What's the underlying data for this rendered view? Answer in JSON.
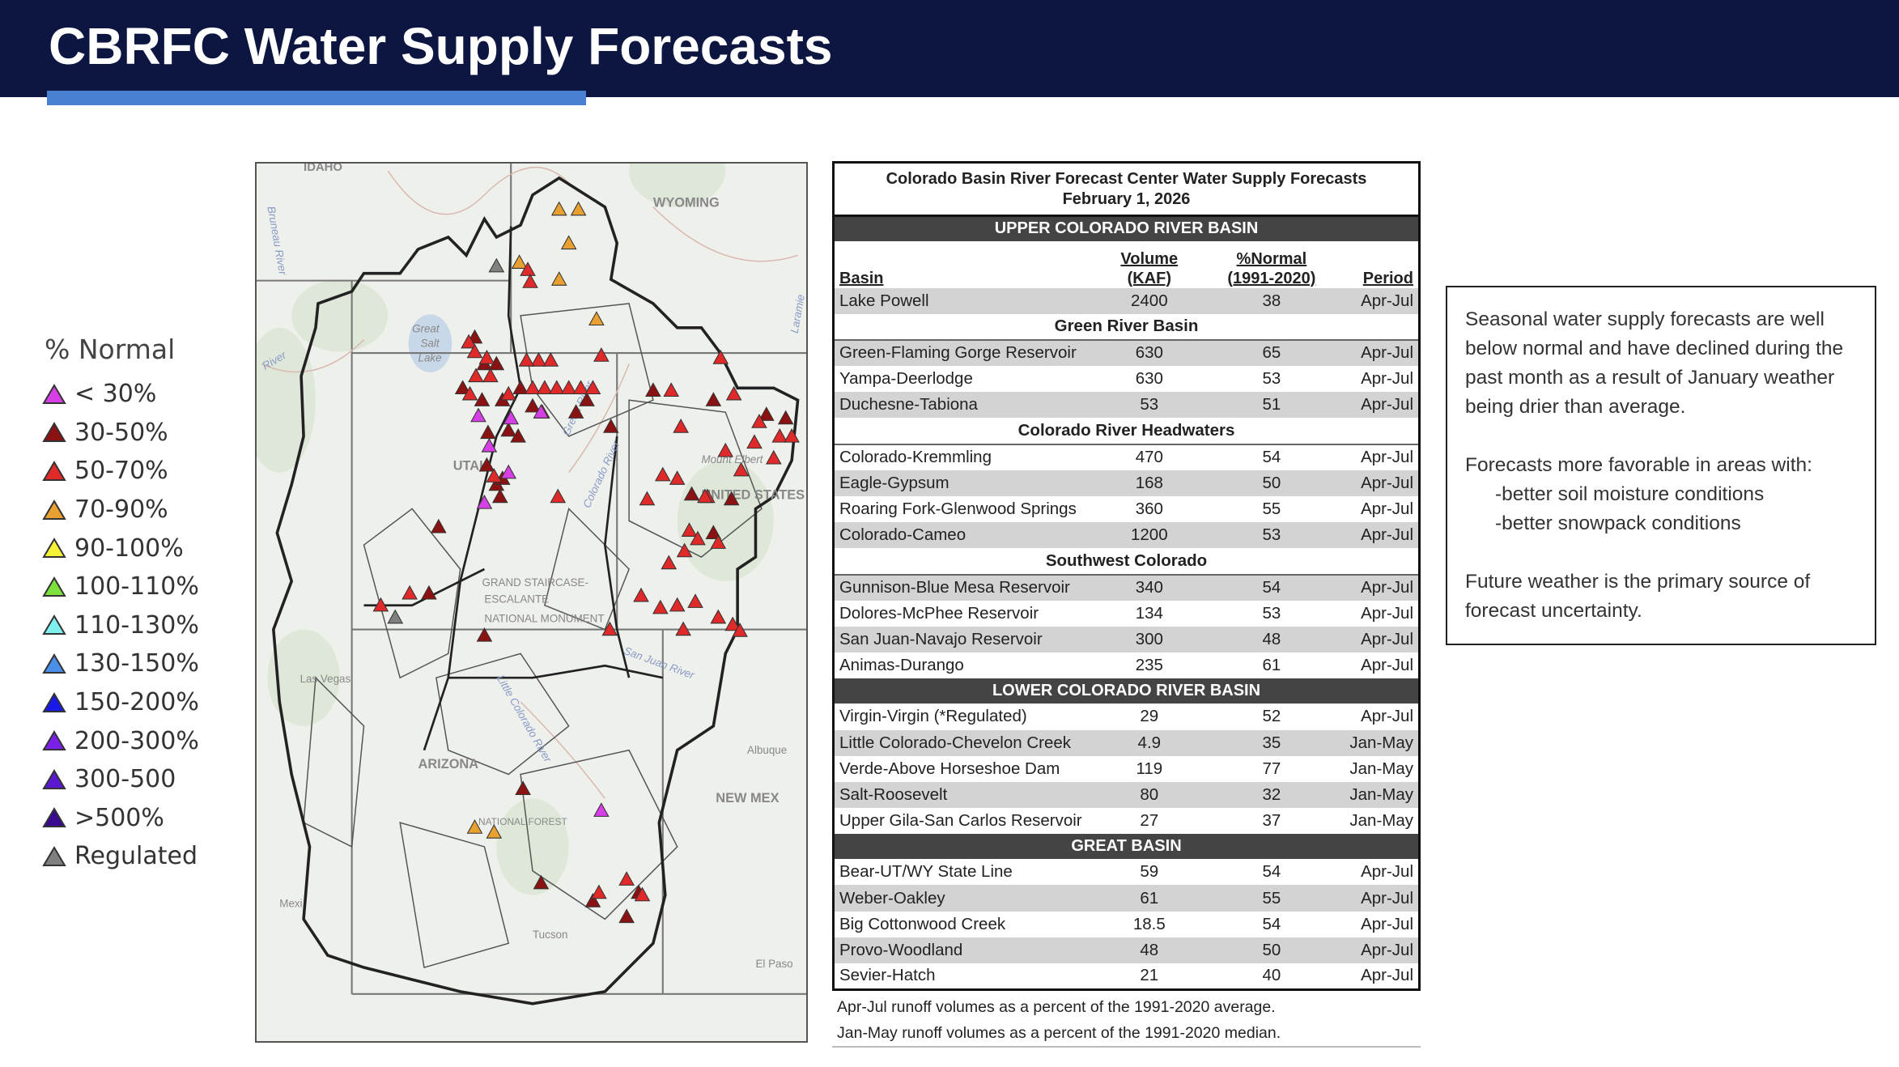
{
  "header": {
    "title": "CBRFC Water Supply Forecasts",
    "background": "#0c1640",
    "accent": "#4a80d2"
  },
  "legend": {
    "title": "% Normal",
    "items": [
      {
        "label": "< 30%",
        "color": "#d63ee6"
      },
      {
        "label": "30-50%",
        "color": "#8b1212"
      },
      {
        "label": "50-70%",
        "color": "#e02a2a"
      },
      {
        "label": "70-90%",
        "color": "#e8a030"
      },
      {
        "label": "90-100%",
        "color": "#f4f236"
      },
      {
        "label": "100-110%",
        "color": "#7ee03a"
      },
      {
        "label": "110-130%",
        "color": "#7ef0f0"
      },
      {
        "label": "130-150%",
        "color": "#4a90e8"
      },
      {
        "label": "150-200%",
        "color": "#1a1ae8"
      },
      {
        "label": "200-300%",
        "color": "#7a20e8"
      },
      {
        "label": "300-500",
        "color": "#5a18d0"
      },
      {
        "label": ">500%",
        "color": "#3a0a90"
      },
      {
        "label": "Regulated",
        "color": "#808080"
      }
    ]
  },
  "map": {
    "labels": [
      "IDAHO",
      "WYOMING",
      "Great",
      "Salt",
      "Lake",
      "UTAH",
      "ARIZONA",
      "NEW MEX",
      "Las Vegas",
      "Albuque",
      "El Paso",
      "Tucson",
      "Mexi",
      "Bruneau River",
      "River",
      "Laramie",
      "Green River",
      "Colorado River",
      "San Juan River",
      "Little Colorado River",
      "GRAND STAIRCASE-",
      "ESCALANTE",
      "NATIONAL MONUMENT",
      "Mount Elbert",
      "UNITED STATES",
      "NATIONAL FOREST"
    ]
  },
  "table": {
    "caption_line1": "Colorado Basin River Forecast Center Water Supply Forecasts",
    "caption_line2": "February 1, 2026",
    "columns": {
      "basin": "Basin",
      "volume_1": "Volume",
      "volume_2": "(KAF)",
      "normal_1": "%Normal",
      "normal_2": "(1991-2020)",
      "period": "Period"
    },
    "rows": [
      {
        "type": "banner",
        "label": "UPPER COLORADO RIVER BASIN"
      },
      {
        "type": "colhead"
      },
      {
        "type": "data",
        "basin": "Lake Powell",
        "volume": "2400",
        "normal": "38",
        "period": "Apr-Jul"
      },
      {
        "type": "sub",
        "label": "Green River Basin"
      },
      {
        "type": "data",
        "basin": "Green-Flaming Gorge Reservoir",
        "volume": "630",
        "normal": "65",
        "period": "Apr-Jul"
      },
      {
        "type": "data",
        "basin": "Yampa-Deerlodge",
        "volume": "630",
        "normal": "53",
        "period": "Apr-Jul"
      },
      {
        "type": "data",
        "basin": "Duchesne-Tabiona",
        "volume": "53",
        "normal": "51",
        "period": "Apr-Jul"
      },
      {
        "type": "sub",
        "label": "Colorado River Headwaters"
      },
      {
        "type": "data",
        "basin": "Colorado-Kremmling",
        "volume": "470",
        "normal": "54",
        "period": "Apr-Jul"
      },
      {
        "type": "data",
        "basin": "Eagle-Gypsum",
        "volume": "168",
        "normal": "50",
        "period": "Apr-Jul"
      },
      {
        "type": "data",
        "basin": "Roaring Fork-Glenwood Springs",
        "volume": "360",
        "normal": "55",
        "period": "Apr-Jul"
      },
      {
        "type": "data",
        "basin": "Colorado-Cameo",
        "volume": "1200",
        "normal": "53",
        "period": "Apr-Jul"
      },
      {
        "type": "sub",
        "label": "Southwest Colorado"
      },
      {
        "type": "data",
        "basin": "Gunnison-Blue Mesa Reservoir",
        "volume": "340",
        "normal": "54",
        "period": "Apr-Jul"
      },
      {
        "type": "data",
        "basin": "Dolores-McPhee Reservoir",
        "volume": "134",
        "normal": "53",
        "period": "Apr-Jul"
      },
      {
        "type": "data",
        "basin": "San Juan-Navajo Reservoir",
        "volume": "300",
        "normal": "48",
        "period": "Apr-Jul"
      },
      {
        "type": "data",
        "basin": "Animas-Durango",
        "volume": "235",
        "normal": "61",
        "period": "Apr-Jul"
      },
      {
        "type": "banner",
        "label": "LOWER COLORADO RIVER BASIN"
      },
      {
        "type": "data",
        "basin": "Virgin-Virgin (*Regulated)",
        "volume": "29",
        "normal": "52",
        "period": "Apr-Jul"
      },
      {
        "type": "data",
        "basin": "Little Colorado-Chevelon Creek",
        "volume": "4.9",
        "normal": "35",
        "period": "Jan-May"
      },
      {
        "type": "data",
        "basin": "Verde-Above Horseshoe Dam",
        "volume": "119",
        "normal": "77",
        "period": "Jan-May"
      },
      {
        "type": "data",
        "basin": "Salt-Roosevelt",
        "volume": "80",
        "normal": "32",
        "period": "Jan-May"
      },
      {
        "type": "data",
        "basin": "Upper Gila-San Carlos Reservoir",
        "volume": "27",
        "normal": "37",
        "period": "Jan-May"
      },
      {
        "type": "banner",
        "label": "GREAT BASIN"
      },
      {
        "type": "data",
        "basin": "Bear-UT/WY State Line",
        "volume": "59",
        "normal": "54",
        "period": "Apr-Jul"
      },
      {
        "type": "data",
        "basin": "Weber-Oakley",
        "volume": "61",
        "normal": "55",
        "period": "Apr-Jul"
      },
      {
        "type": "data",
        "basin": "Big Cottonwood Creek",
        "volume": "18.5",
        "normal": "54",
        "period": "Apr-Jul"
      },
      {
        "type": "data",
        "basin": "Provo-Woodland",
        "volume": "48",
        "normal": "50",
        "period": "Apr-Jul"
      },
      {
        "type": "data",
        "basin": "Sevier-Hatch",
        "volume": "21",
        "normal": "40",
        "period": "Apr-Jul"
      }
    ],
    "note1": "Apr-Jul runoff volumes as a percent of the 1991-2020 average.",
    "note2": "Jan-May runoff volumes as a percent of the 1991-2020 median."
  },
  "summary": {
    "p1": "Seasonal water supply forecasts are well below normal and have declined during the past month as a result of January weather being drier than average.",
    "p2_intro": "Forecasts more favorable in areas with:",
    "p2_items": [
      "-better soil moisture conditions",
      "-better snowpack conditions"
    ],
    "p3": "Future weather is the primary source of forecast uncertainty."
  }
}
